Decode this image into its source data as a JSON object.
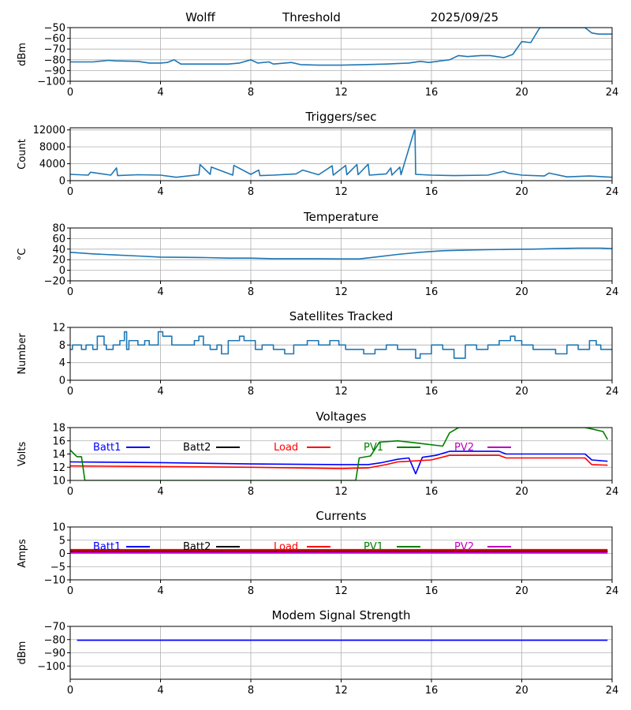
{
  "header": {
    "station": "Wolff",
    "mode": "Threshold",
    "date": "2025/09/25"
  },
  "legend_labels": [
    "Batt1",
    "Batt2",
    "Load",
    "PV1",
    "PV2"
  ],
  "colors": {
    "default_line": "#1f77b4",
    "grid": "#b0b0b0",
    "Batt1": "#0000ff",
    "Batt2": "#000000",
    "Load": "#ff0000",
    "PV1": "#008000",
    "PV2": "#bf00bf"
  },
  "chart_data": [
    {
      "id": "threshold",
      "type": "line",
      "title": "",
      "xlabel": "",
      "ylabel": "dBm",
      "xlim": [
        0,
        24
      ],
      "ylim": [
        -100,
        -50
      ],
      "xticks": [
        "0",
        "4",
        "8",
        "12",
        "16",
        "20",
        "24"
      ],
      "yticks": [
        "-50",
        "-60",
        "-70",
        "-80",
        "-90",
        "-100"
      ],
      "ytick_values": [
        -50,
        -60,
        -70,
        -80,
        -90,
        -100
      ],
      "grid": true,
      "series": [
        {
          "name": "Threshold",
          "x": [
            0,
            1,
            1.7,
            2,
            3,
            3.5,
            4,
            4.3,
            4.6,
            4.9,
            5.5,
            7,
            7.5,
            8,
            8.3,
            8.8,
            9,
            9.8,
            10.2,
            11,
            12,
            13,
            14,
            15,
            15.5,
            15.9,
            16.4,
            16.8,
            17.2,
            17.6,
            18.2,
            18.6,
            19.2,
            19.6,
            20,
            20.4,
            20.8,
            21.3,
            22.8,
            23.1,
            23.4,
            24
          ],
          "y": [
            -82,
            -82,
            -80.5,
            -81,
            -81.5,
            -83,
            -83,
            -82.5,
            -80,
            -84,
            -84,
            -84,
            -83,
            -80,
            -83,
            -82,
            -84,
            -82.5,
            -84.5,
            -85,
            -85,
            -84.5,
            -84,
            -83,
            -81.5,
            -82.5,
            -81,
            -80,
            -76,
            -77,
            -76,
            -76,
            -78,
            -75,
            -63,
            -64,
            -50,
            -50,
            -50,
            -55,
            -56,
            -56
          ]
        }
      ]
    },
    {
      "id": "triggers",
      "type": "line",
      "title": "Triggers/sec",
      "xlabel": "",
      "ylabel": "Count",
      "xlim": [
        0,
        24
      ],
      "ylim": [
        0,
        12500
      ],
      "xticks": [
        "0",
        "4",
        "8",
        "12",
        "16",
        "20",
        "24"
      ],
      "yticks": [
        "12000",
        "8000",
        "4000",
        "0"
      ],
      "ytick_values": [
        12000,
        8000,
        4000,
        0
      ],
      "grid": true,
      "series": [
        {
          "name": "Triggers",
          "x": [
            0,
            0.8,
            0.9,
            1.8,
            2.05,
            2.1,
            3,
            4,
            4.7,
            5.7,
            5.75,
            6.2,
            6.25,
            7.2,
            7.25,
            8,
            8.35,
            8.4,
            9,
            10,
            10.3,
            11,
            11.6,
            11.65,
            12.2,
            12.25,
            12.7,
            12.75,
            13.2,
            13.25,
            14,
            14.2,
            14.25,
            14.6,
            14.65,
            15.25,
            15.27,
            15.3,
            16,
            17,
            18.5,
            19.2,
            19.4,
            20,
            21,
            21.2,
            22,
            23,
            24
          ],
          "y": [
            1500,
            1300,
            2000,
            1300,
            3000,
            1200,
            1400,
            1300,
            800,
            1400,
            3800,
            1500,
            3200,
            1300,
            3600,
            1500,
            2500,
            1200,
            1300,
            1600,
            2500,
            1400,
            3500,
            1300,
            3600,
            1400,
            3800,
            1400,
            3900,
            1300,
            1600,
            3000,
            1300,
            3200,
            1400,
            12000,
            12000,
            1500,
            1300,
            1200,
            1300,
            2200,
            1800,
            1300,
            1100,
            1800,
            900,
            1100,
            800
          ]
        }
      ]
    },
    {
      "id": "temperature",
      "type": "line",
      "title": "Temperature",
      "xlabel": "",
      "ylabel": "°C",
      "xlim": [
        0,
        24
      ],
      "ylim": [
        -20,
        80
      ],
      "xticks": [
        "0",
        "4",
        "8",
        "12",
        "16",
        "20",
        "24"
      ],
      "yticks": [
        "80",
        "60",
        "40",
        "20",
        "0",
        "-20"
      ],
      "ytick_values": [
        80,
        60,
        40,
        20,
        0,
        -20
      ],
      "grid": true,
      "series": [
        {
          "name": "Temperature",
          "x": [
            0,
            1,
            2,
            3,
            4,
            5,
            6,
            7,
            8,
            9,
            10,
            11,
            12,
            12.8,
            13.5,
            14.5,
            15.5,
            16.5,
            17.5,
            18.5,
            19.5,
            20.5,
            21.5,
            22.5,
            23.5,
            24
          ],
          "y": [
            34,
            31,
            29,
            27,
            25,
            24.5,
            24,
            23,
            23,
            22,
            22,
            22,
            21.5,
            21.5,
            25,
            30,
            34,
            37,
            38,
            39,
            39.5,
            40,
            41,
            42,
            42,
            41
          ]
        }
      ]
    },
    {
      "id": "satellites",
      "type": "line",
      "title": "Satellites Tracked",
      "xlabel": "",
      "ylabel": "Number",
      "xlim": [
        0,
        24
      ],
      "ylim": [
        0,
        12
      ],
      "xticks": [
        "0",
        "4",
        "8",
        "12",
        "16",
        "20",
        "24"
      ],
      "yticks": [
        "12",
        "8",
        "4",
        "0"
      ],
      "ytick_values": [
        12,
        8,
        4,
        0
      ],
      "grid": true,
      "series": [
        {
          "name": "Satellites",
          "x": [
            0,
            0.1,
            0.5,
            0.7,
            1.0,
            1.2,
            1.5,
            1.6,
            1.9,
            2.2,
            2.4,
            2.5,
            2.6,
            3.0,
            3.3,
            3.5,
            3.9,
            4.1,
            4.5,
            5.0,
            5.5,
            5.7,
            5.9,
            6.2,
            6.5,
            6.7,
            7.0,
            7.5,
            7.7,
            8.0,
            8.2,
            8.5,
            9.0,
            9.5,
            9.9,
            10.2,
            10.5,
            11,
            11.5,
            11.9,
            12.2,
            12.6,
            13,
            13.5,
            14,
            14.5,
            15,
            15.3,
            15.5,
            16,
            16.5,
            17,
            17.5,
            18,
            18.5,
            19,
            19.5,
            19.7,
            20,
            20.5,
            21,
            21.5,
            22,
            22.5,
            23,
            23.3,
            23.5,
            24
          ],
          "y": [
            7,
            8,
            7,
            8,
            7,
            10,
            8,
            7,
            8,
            9,
            11,
            7,
            9,
            8,
            9,
            8,
            11,
            10,
            8,
            8,
            9,
            10,
            8,
            7,
            8,
            6,
            9,
            10,
            9,
            9,
            7,
            8,
            7,
            6,
            8,
            8,
            9,
            8,
            9,
            8,
            7,
            7,
            6,
            7,
            8,
            7,
            7,
            5,
            6,
            8,
            7,
            5,
            8,
            7,
            8,
            9,
            10,
            9,
            8,
            7,
            7,
            6,
            8,
            7,
            9,
            8,
            7,
            7
          ]
        }
      ]
    },
    {
      "id": "voltages",
      "type": "line",
      "title": "Voltages",
      "xlabel": "",
      "ylabel": "Volts",
      "xlim": [
        0,
        24
      ],
      "ylim": [
        10,
        18
      ],
      "xticks": [
        "0",
        "4",
        "8",
        "12",
        "16",
        "20",
        "24"
      ],
      "yticks": [
        "18",
        "16",
        "14",
        "12",
        "10"
      ],
      "ytick_values": [
        18,
        16,
        14,
        12,
        10
      ],
      "grid": true,
      "legend": "top-inside",
      "series": [
        {
          "name": "Batt1",
          "color_key": "Batt1",
          "x": [
            0,
            4,
            8,
            12,
            13.2,
            13.8,
            14.5,
            15,
            15.3,
            15.6,
            16.2,
            16.8,
            18,
            19,
            19.3,
            20,
            22,
            22.8,
            23.1,
            23.8
          ],
          "y": [
            12.8,
            12.7,
            12.5,
            12.4,
            12.4,
            12.7,
            13.2,
            13.4,
            11,
            13.5,
            13.8,
            14.4,
            14.4,
            14.4,
            14,
            14,
            14,
            14,
            13.1,
            12.9
          ]
        },
        {
          "name": "Load",
          "color_key": "Load",
          "x": [
            0,
            4,
            8,
            12,
            13.2,
            14,
            14.5,
            16,
            16.8,
            18,
            19,
            19.3,
            20,
            22,
            22.8,
            23.1,
            23.8
          ],
          "y": [
            12.2,
            12.1,
            12,
            11.8,
            11.9,
            12.4,
            12.8,
            13.1,
            13.8,
            13.8,
            13.8,
            13.4,
            13.4,
            13.4,
            13.4,
            12.4,
            12.3
          ]
        },
        {
          "name": "PV1",
          "color_key": "PV1",
          "x": [
            0,
            0.3,
            0.5,
            0.65,
            12.65,
            12.8,
            13.3,
            13.7,
            14.5,
            15,
            15.5,
            16.5,
            16.8,
            17.2,
            22.8,
            23.1,
            23.6,
            23.8
          ],
          "y": [
            14.6,
            13.6,
            13.6,
            10,
            10,
            13.4,
            13.7,
            15.8,
            16,
            15.8,
            15.6,
            15.2,
            17.2,
            18,
            18,
            17.8,
            17.4,
            16.2
          ]
        }
      ]
    },
    {
      "id": "currents",
      "type": "line",
      "title": "Currents",
      "xlabel": "",
      "ylabel": "Amps",
      "xlim": [
        0,
        24
      ],
      "ylim": [
        -10,
        10
      ],
      "xticks": [
        "0",
        "4",
        "8",
        "12",
        "16",
        "20",
        "24"
      ],
      "yticks": [
        "10",
        "5",
        "0",
        "-5",
        "-10"
      ],
      "ytick_values": [
        10,
        5,
        0,
        -5,
        -10
      ],
      "grid": true,
      "legend": "top-inside",
      "series": [
        {
          "name": "Batt1",
          "color_key": "Batt1",
          "x": [
            0,
            15.5,
            15.8,
            16.1,
            23.8
          ],
          "y": [
            0.8,
            0.8,
            1.2,
            0.8,
            0.8
          ]
        },
        {
          "name": "Batt2",
          "color_key": "Batt2",
          "x": [
            0,
            23.8
          ],
          "y": [
            0.7,
            0.7
          ]
        },
        {
          "name": "Load",
          "color_key": "Load",
          "x": [
            0,
            23.8
          ],
          "y": [
            1.3,
            1.3
          ]
        },
        {
          "name": "PV2",
          "color_key": "PV2",
          "x": [
            0,
            23.8
          ],
          "y": [
            0.3,
            0.3
          ]
        }
      ]
    },
    {
      "id": "modem",
      "type": "line",
      "title": "Modem Signal Strength",
      "xlabel": "",
      "ylabel": "dBm",
      "xlim": [
        0,
        24
      ],
      "ylim": [
        -110,
        -70
      ],
      "xticks": [
        "0",
        "4",
        "8",
        "12",
        "16",
        "20",
        "24"
      ],
      "yticks": [
        "-70",
        "-80",
        "-90",
        "-100"
      ],
      "ytick_values": [
        -70,
        -80,
        -90,
        -100
      ],
      "grid": true,
      "series": [
        {
          "name": "Modem",
          "color_key": "Batt1",
          "x": [
            0.3,
            23.8
          ],
          "y": [
            -80.5,
            -80.5
          ]
        }
      ]
    }
  ]
}
